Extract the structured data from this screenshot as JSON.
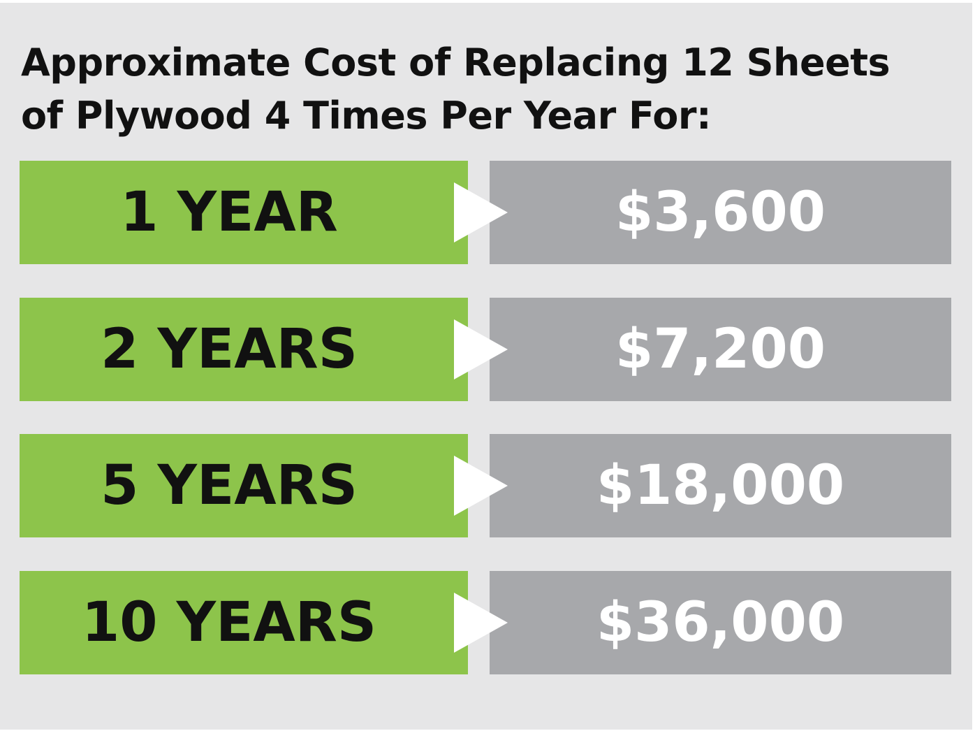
{
  "header": {
    "title_lines": [
      "Approximate Cost of Replacing 12 Sheets",
      "of Plywood 4 Times Per Year For:"
    ]
  },
  "rows": [
    {
      "label": "1 YEAR",
      "value": "$3,600"
    },
    {
      "label": "2 YEARS",
      "value": "$7,200"
    },
    {
      "label": "5 YEARS",
      "value": "$18,000"
    },
    {
      "label": "10 YEARS",
      "value": "$36,000"
    }
  ]
}
